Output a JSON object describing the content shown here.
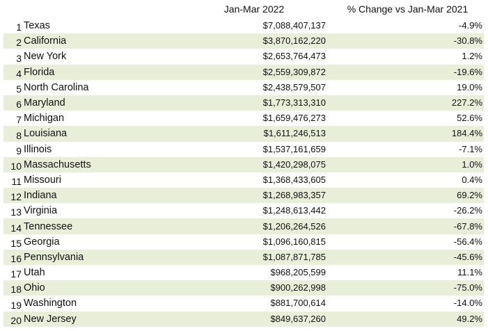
{
  "table": {
    "headers": {
      "rank": "",
      "state": "",
      "value": "Jan-Mar 2022",
      "change": "% Change vs Jan-Mar 2021"
    },
    "rows": [
      {
        "rank": "1",
        "state": "Texas",
        "value": "$7,088,407,137",
        "change": "-4.9%"
      },
      {
        "rank": "2",
        "state": "California",
        "value": "$3,870,162,220",
        "change": "-30.8%"
      },
      {
        "rank": "3",
        "state": "New York",
        "value": "$2,653,764,473",
        "change": "1.2%"
      },
      {
        "rank": "4",
        "state": "Florida",
        "value": "$2,559,309,872",
        "change": "-19.6%"
      },
      {
        "rank": "5",
        "state": "North Carolina",
        "value": "$2,438,579,507",
        "change": "19.0%"
      },
      {
        "rank": "6",
        "state": "Maryland",
        "value": "$1,773,313,310",
        "change": "227.2%"
      },
      {
        "rank": "7",
        "state": "Michigan",
        "value": "$1,659,476,273",
        "change": "52.6%"
      },
      {
        "rank": "8",
        "state": "Louisiana",
        "value": "$1,611,246,513",
        "change": "184.4%"
      },
      {
        "rank": "9",
        "state": "Illinois",
        "value": "$1,537,161,659",
        "change": "-7.1%"
      },
      {
        "rank": "10",
        "state": "Massachusetts",
        "value": "$1,420,298,075",
        "change": "1.0%"
      },
      {
        "rank": "11",
        "state": "Missouri",
        "value": "$1,368,433,605",
        "change": "0.4%"
      },
      {
        "rank": "12",
        "state": "Indiana",
        "value": "$1,268,983,357",
        "change": "69.2%"
      },
      {
        "rank": "13",
        "state": "Virginia",
        "value": "$1,248,613,442",
        "change": "-26.2%"
      },
      {
        "rank": "14",
        "state": "Tennessee",
        "value": "$1,206,264,526",
        "change": "-67.8%"
      },
      {
        "rank": "15",
        "state": "Georgia",
        "value": "$1,096,160,815",
        "change": "-56.4%"
      },
      {
        "rank": "16",
        "state": "Pennsylvania",
        "value": "$1,087,871,785",
        "change": "-45.6%"
      },
      {
        "rank": "17",
        "state": "Utah",
        "value": "$968,205,599",
        "change": "11.1%"
      },
      {
        "rank": "18",
        "state": "Ohio",
        "value": "$900,262,998",
        "change": "-75.0%"
      },
      {
        "rank": "19",
        "state": "Washington",
        "value": "$881,700,614",
        "change": "-14.0%"
      },
      {
        "rank": "20",
        "state": "New Jersey",
        "value": "$849,637,260",
        "change": "49.2%"
      }
    ]
  },
  "colors": {
    "row_stripe": "#e9eed8",
    "row_plain": "#ffffff",
    "text": "#111111"
  }
}
